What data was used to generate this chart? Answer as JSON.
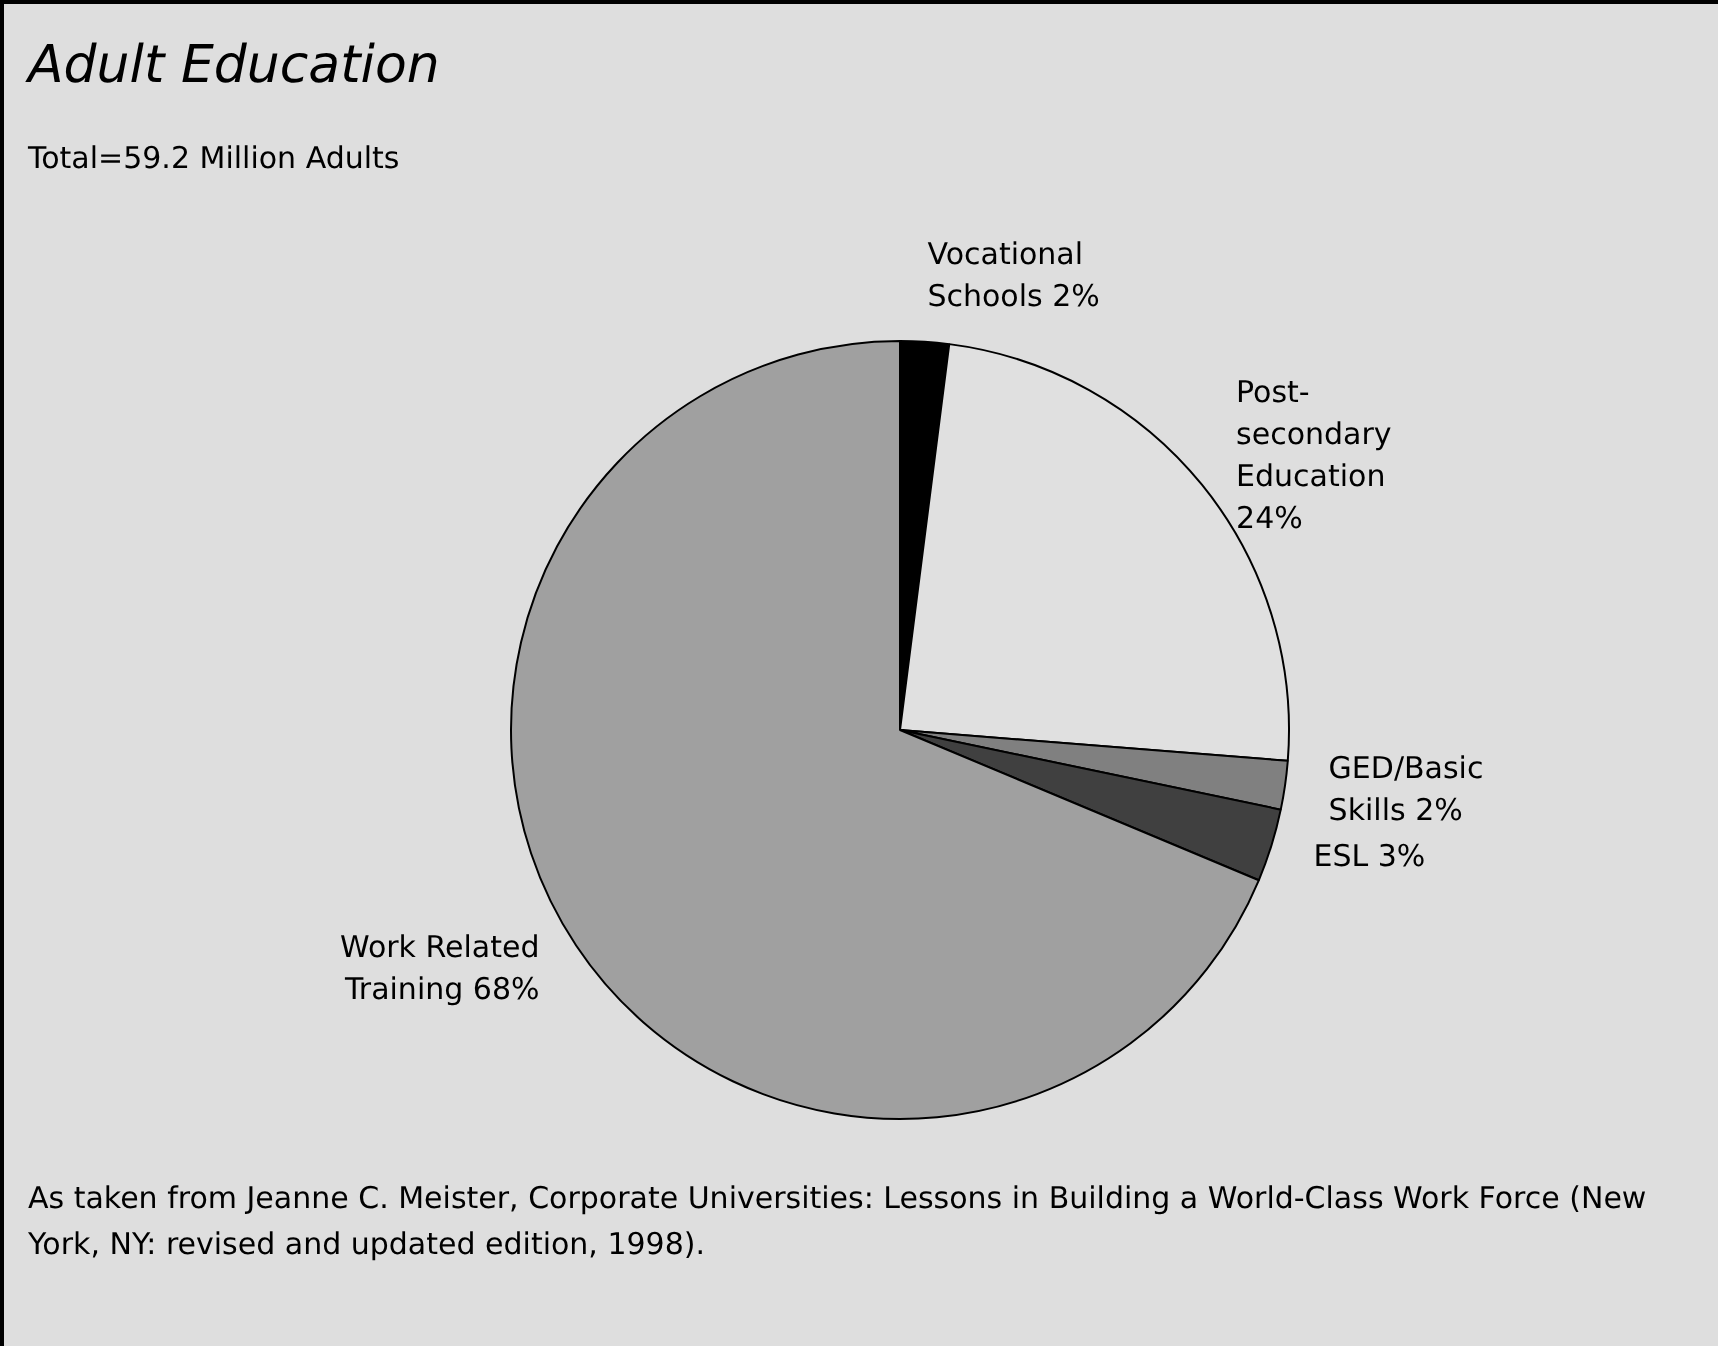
{
  "chart_data": {
    "type": "pie",
    "title": "Adult Education",
    "subtitle": "Total=59.2 Million Adults",
    "categories": [
      "Vocational Schools",
      "Post-secondary Education",
      "GED/Basic Skills",
      "ESL",
      "Work Related Training"
    ],
    "values": [
      2,
      24,
      2,
      3,
      68
    ],
    "value_labels": [
      "2%",
      "24%",
      "2%",
      "3%",
      "68%"
    ],
    "colors": [
      "#000000",
      "#e0e0e0",
      "#808080",
      "#404040",
      "#a0a0a0"
    ],
    "legend": false,
    "annotations": [
      "As taken from Jeanne C. Meister, Corporate Universities: Lessons in Building a World-Class Work Force (New York, NY: revised and updated edition, 1998)."
    ]
  }
}
